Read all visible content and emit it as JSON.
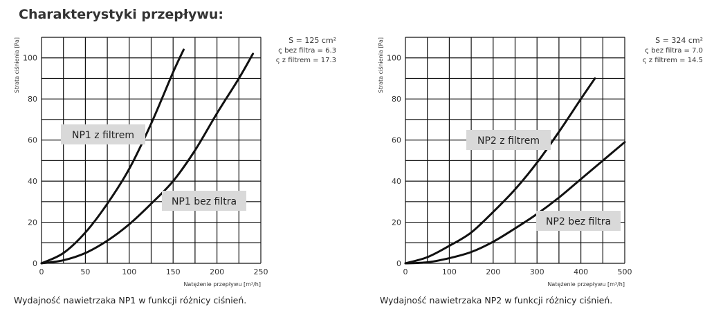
{
  "title": "Charakterystyki przepływu:",
  "chart_data": [
    {
      "type": "line",
      "xlabel": "Natężenie przepływu [m³/h]",
      "ylabel": "Strata ciśnienia [Pa]",
      "xlim": [
        0,
        250
      ],
      "ylim": [
        0,
        110
      ],
      "xticks": [
        0,
        50,
        100,
        150,
        200,
        250
      ],
      "yticks": [
        0,
        20,
        40,
        60,
        80,
        100
      ],
      "xgrid_step": 25,
      "ygrid_step": 10,
      "info": [
        "S = 125 cm²",
        "ς bez filtra = 6.3",
        "ς z filtrem = 17.3"
      ],
      "caption": "Wydajność nawietrzaka NP1 w funkcji różnicy ciśnień.",
      "series": [
        {
          "name": "NP1 z filtrem",
          "x": [
            0,
            25,
            50,
            75,
            100,
            125,
            150,
            162
          ],
          "y": [
            0,
            5,
            15,
            29,
            46,
            68,
            93,
            104
          ]
        },
        {
          "name": "NP1 bez filtra",
          "x": [
            0,
            25,
            50,
            75,
            100,
            125,
            150,
            175,
            200,
            225,
            241
          ],
          "y": [
            0,
            1.5,
            5,
            11,
            19,
            29,
            40,
            55,
            73,
            90,
            102
          ]
        }
      ]
    },
    {
      "type": "line",
      "xlabel": "Natężenie przepływu [m³/h]",
      "ylabel": "Strata ciśnienia [Pa]",
      "xlim": [
        0,
        500
      ],
      "ylim": [
        0,
        110
      ],
      "xticks": [
        0,
        100,
        200,
        300,
        400,
        500
      ],
      "yticks": [
        0,
        20,
        40,
        60,
        80,
        100
      ],
      "xgrid_step": 50,
      "ygrid_step": 10,
      "info": [
        "S = 324 cm²",
        "ς bez filtra = 7.0",
        "ς z filtrem = 14.5"
      ],
      "caption": "Wydajność nawietrzaka NP2 w funkcji różnicy ciśnień.",
      "series": [
        {
          "name": "NP2 z filtrem",
          "x": [
            0,
            50,
            100,
            150,
            200,
            250,
            300,
            350,
            400,
            432
          ],
          "y": [
            0,
            3,
            8.5,
            15,
            25,
            36,
            49,
            64,
            80,
            90
          ]
        },
        {
          "name": "NP2 bez filtra",
          "x": [
            0,
            50,
            100,
            150,
            200,
            250,
            300,
            350,
            400,
            450,
            500
          ],
          "y": [
            0,
            0.5,
            2.5,
            5.5,
            10.5,
            17,
            24,
            32,
            41,
            50,
            59
          ]
        }
      ]
    }
  ]
}
